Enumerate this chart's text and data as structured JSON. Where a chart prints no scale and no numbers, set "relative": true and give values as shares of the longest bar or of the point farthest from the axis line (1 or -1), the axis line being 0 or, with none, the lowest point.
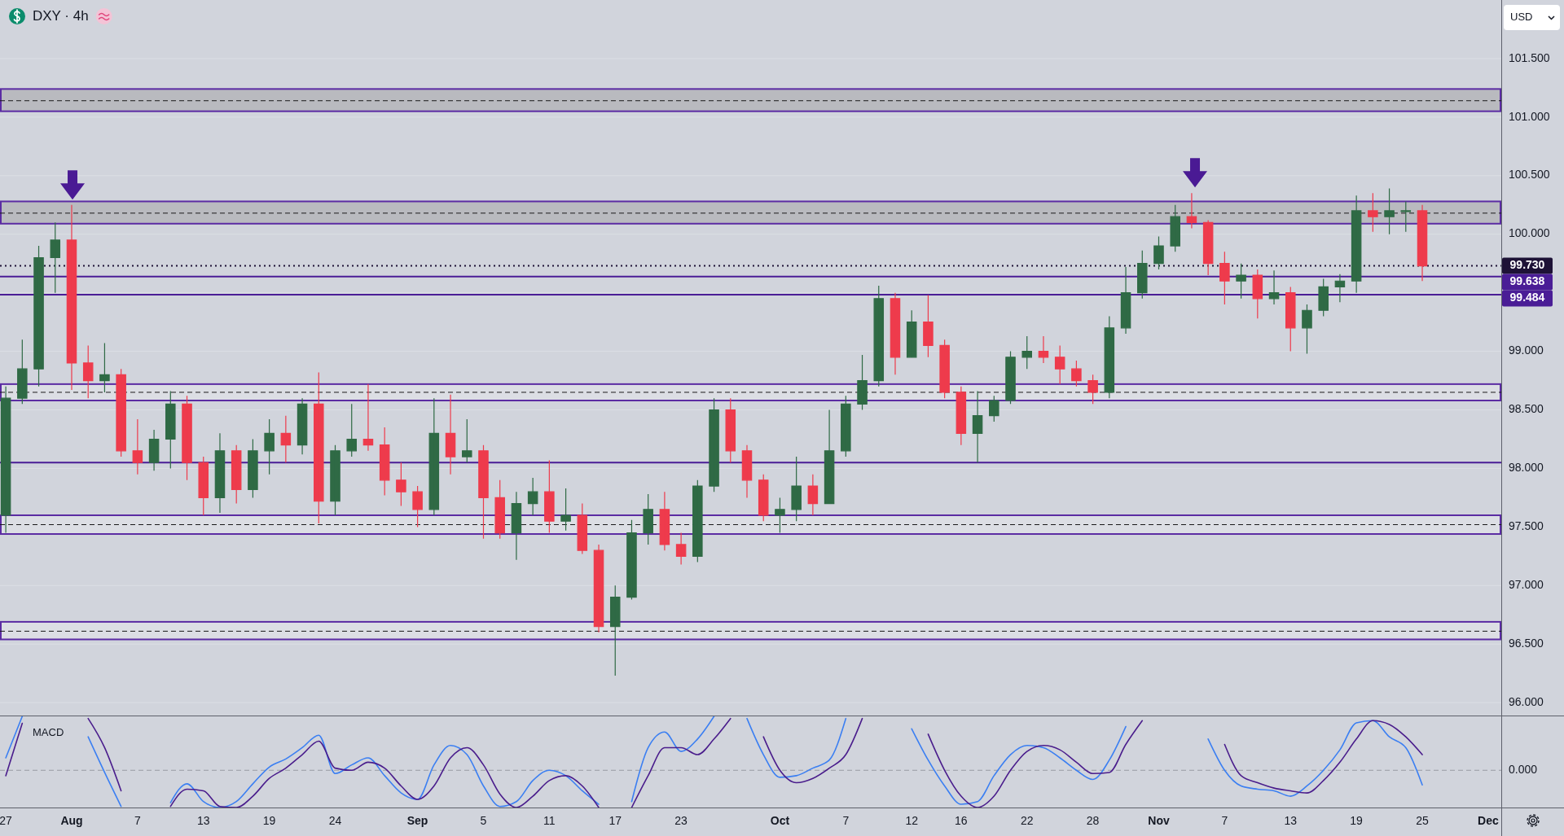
{
  "chart_data": [
    {
      "type": "candlestick",
      "title": "DXY · 4h",
      "annotations": [
        "USD"
      ],
      "categories": [
        null,
        null,
        null,
        null,
        null,
        null,
        null,
        null,
        null,
        null,
        null,
        null,
        null,
        null,
        null,
        null,
        null,
        null,
        null,
        null,
        null,
        null,
        null,
        null,
        null,
        null,
        null,
        null,
        null,
        null,
        null,
        null,
        null,
        null,
        null,
        null,
        null,
        null,
        null,
        null,
        null,
        null,
        null,
        null,
        null,
        null,
        null,
        null,
        null,
        null,
        null,
        null,
        null,
        null,
        null,
        null,
        null,
        null,
        null,
        null,
        null,
        null,
        null,
        null,
        null,
        null,
        null,
        null,
        null,
        null,
        null,
        null,
        null,
        null,
        null,
        null,
        null,
        null,
        null,
        null,
        null,
        null,
        null,
        null,
        null,
        null,
        null,
        null,
        null,
        null,
        null
      ],
      "ohlc": [
        [
          97.6,
          98.7,
          97.45,
          98.6
        ],
        [
          98.6,
          99.1,
          98.55,
          98.85
        ],
        [
          98.85,
          99.9,
          98.7,
          99.8
        ],
        [
          99.8,
          100.1,
          99.5,
          99.95
        ],
        [
          99.95,
          100.25,
          98.67,
          98.9
        ],
        [
          98.9,
          99.05,
          98.6,
          98.75
        ],
        [
          98.75,
          99.07,
          98.65,
          98.8
        ],
        [
          98.8,
          98.85,
          98.1,
          98.15
        ],
        [
          98.15,
          98.42,
          97.95,
          98.05
        ],
        [
          98.05,
          98.33,
          97.98,
          98.25
        ],
        [
          98.25,
          98.66,
          98.0,
          98.55
        ],
        [
          98.55,
          98.62,
          97.9,
          98.05
        ],
        [
          98.05,
          98.1,
          97.6,
          97.75
        ],
        [
          97.75,
          98.3,
          97.62,
          98.15
        ],
        [
          98.15,
          98.2,
          97.7,
          97.82
        ],
        [
          97.82,
          98.25,
          97.75,
          98.15
        ],
        [
          98.15,
          98.42,
          97.95,
          98.3
        ],
        [
          98.3,
          98.45,
          98.05,
          98.2
        ],
        [
          98.2,
          98.6,
          98.12,
          98.55
        ],
        [
          98.55,
          98.82,
          97.53,
          97.72
        ],
        [
          97.72,
          98.2,
          97.6,
          98.15
        ],
        [
          98.15,
          98.55,
          98.1,
          98.25
        ],
        [
          98.25,
          98.72,
          98.15,
          98.2
        ],
        [
          98.2,
          98.35,
          97.77,
          97.9
        ],
        [
          97.9,
          98.05,
          97.68,
          97.8
        ],
        [
          97.8,
          97.85,
          97.5,
          97.65
        ],
        [
          97.65,
          98.6,
          97.6,
          98.3
        ],
        [
          98.3,
          98.63,
          97.95,
          98.1
        ],
        [
          98.1,
          98.42,
          98.05,
          98.15
        ],
        [
          98.15,
          98.2,
          97.4,
          97.75
        ],
        [
          97.75,
          97.9,
          97.4,
          97.45
        ],
        [
          97.45,
          97.8,
          97.22,
          97.7
        ],
        [
          97.7,
          97.92,
          97.6,
          97.8
        ],
        [
          97.8,
          98.07,
          97.45,
          97.55
        ],
        [
          97.55,
          97.83,
          97.47,
          97.6
        ],
        [
          97.6,
          97.7,
          97.27,
          97.3
        ],
        [
          97.3,
          97.35,
          96.6,
          96.65
        ],
        [
          96.65,
          97.0,
          96.23,
          96.9
        ],
        [
          96.9,
          97.56,
          96.88,
          97.45
        ],
        [
          97.45,
          97.78,
          97.35,
          97.65
        ],
        [
          97.65,
          97.8,
          97.3,
          97.35
        ],
        [
          97.35,
          97.45,
          97.18,
          97.25
        ],
        [
          97.25,
          97.9,
          97.2,
          97.85
        ],
        [
          97.85,
          98.6,
          97.8,
          98.5
        ],
        [
          98.5,
          98.6,
          98.05,
          98.15
        ],
        [
          98.15,
          98.2,
          97.75,
          97.9
        ],
        [
          97.9,
          97.95,
          97.55,
          97.6
        ],
        [
          97.6,
          97.75,
          97.45,
          97.65
        ],
        [
          97.65,
          98.1,
          97.55,
          97.85
        ],
        [
          97.85,
          97.95,
          97.6,
          97.7
        ],
        [
          97.7,
          98.5,
          97.7,
          98.15
        ],
        [
          98.15,
          98.62,
          98.1,
          98.55
        ],
        [
          98.55,
          98.97,
          98.5,
          98.75
        ],
        [
          98.75,
          99.56,
          98.7,
          99.45
        ],
        [
          99.45,
          99.5,
          98.8,
          98.95
        ],
        [
          98.95,
          99.35,
          98.95,
          99.25
        ],
        [
          99.25,
          99.48,
          98.95,
          99.05
        ],
        [
          99.05,
          99.1,
          98.6,
          98.65
        ],
        [
          98.65,
          98.7,
          98.2,
          98.3
        ],
        [
          98.3,
          98.66,
          98.05,
          98.45
        ],
        [
          98.45,
          98.62,
          98.4,
          98.58
        ],
        [
          98.58,
          99.0,
          98.55,
          98.95
        ],
        [
          98.95,
          99.13,
          98.85,
          99.0
        ],
        [
          99.0,
          99.13,
          98.9,
          98.95
        ],
        [
          98.95,
          99.05,
          98.72,
          98.85
        ],
        [
          98.85,
          98.92,
          98.7,
          98.75
        ],
        [
          98.75,
          98.8,
          98.55,
          98.65
        ],
        [
          98.65,
          99.3,
          98.6,
          99.2
        ],
        [
          99.2,
          99.72,
          99.15,
          99.5
        ],
        [
          99.5,
          99.86,
          99.45,
          99.75
        ],
        [
          99.75,
          99.98,
          99.7,
          99.9
        ],
        [
          99.9,
          100.25,
          99.85,
          100.15
        ],
        [
          100.15,
          100.35,
          100.05,
          100.1
        ],
        [
          100.1,
          100.12,
          99.65,
          99.75
        ],
        [
          99.75,
          99.85,
          99.4,
          99.6
        ],
        [
          99.6,
          99.75,
          99.45,
          99.65
        ],
        [
          99.65,
          99.7,
          99.28,
          99.45
        ],
        [
          99.45,
          99.69,
          99.4,
          99.5
        ],
        [
          99.5,
          99.55,
          99.0,
          99.2
        ],
        [
          99.2,
          99.4,
          98.98,
          99.35
        ],
        [
          99.35,
          99.62,
          99.3,
          99.55
        ],
        [
          99.55,
          99.66,
          99.42,
          99.6
        ],
        [
          99.6,
          100.33,
          99.5,
          100.2
        ],
        [
          100.2,
          100.35,
          100.02,
          100.15
        ],
        [
          100.15,
          100.39,
          100.0,
          100.2
        ],
        [
          100.2,
          100.28,
          100.02,
          100.2
        ],
        [
          100.2,
          100.25,
          99.6,
          99.73
        ],
        null,
        null,
        null,
        null
      ],
      "ylim": [
        95.89,
        102.0
      ],
      "yticks": [
        {
          "value": 96,
          "label": "96.000"
        },
        {
          "value": 96.5,
          "label": "96.500"
        },
        {
          "value": 97,
          "label": "97.000"
        },
        {
          "value": 97.5,
          "label": "97.500"
        },
        {
          "value": 98,
          "label": "98.000"
        },
        {
          "value": 98.5,
          "label": "98.500"
        },
        {
          "value": 99,
          "label": "99.000"
        },
        {
          "value": 99.5,
          "label": null
        },
        {
          "value": 100,
          "label": "100.000"
        },
        {
          "value": 100.5,
          "label": "100.500"
        },
        {
          "value": 101,
          "label": "101.000"
        },
        {
          "value": 101.5,
          "label": "101.500"
        }
      ],
      "grid": "y",
      "tick_labels": "y",
      "bands": [
        {
          "axis": "y",
          "from": 101.05,
          "to": 101.24,
          "color": "#b9babf"
        },
        {
          "axis": "y",
          "from": 100.09,
          "to": 100.28,
          "color": "#b9babf"
        },
        {
          "axis": "y",
          "from": 98.58,
          "to": 98.72,
          "color": "#dcdee4"
        },
        {
          "axis": "y",
          "from": 97.44,
          "to": 97.6,
          "color": "#dcdee4"
        },
        {
          "axis": "y",
          "from": 96.54,
          "to": 96.69,
          "color": "#dcdee4"
        }
      ],
      "ref_lines": [
        {
          "axis": "y",
          "value": 99.73,
          "label": "99.730",
          "color": "#1e1236",
          "line_style": "dotted"
        },
        {
          "axis": "y",
          "value": 99.638,
          "label": "99.638",
          "color": "#4a1d96",
          "line_style": "solid"
        },
        {
          "axis": "y",
          "value": 99.484,
          "label": "99.484",
          "color": "#4a1d96",
          "line_style": "solid"
        },
        {
          "axis": "y",
          "value": 98.05,
          "color": "#4a1d96",
          "line_style": "solid"
        },
        {
          "axis": "y",
          "value": 101.14,
          "color": "#1a1a1a",
          "line_style": "dashed"
        },
        {
          "axis": "y",
          "value": 100.18,
          "color": "#1a1a1a",
          "line_style": "dashed"
        },
        {
          "axis": "y",
          "value": 98.65,
          "color": "#1a1a1a",
          "line_style": "dashed"
        },
        {
          "axis": "y",
          "value": 97.52,
          "color": "#1a1a1a",
          "line_style": "dashed"
        },
        {
          "axis": "y",
          "value": 96.61,
          "color": "#1a1a1a",
          "line_style": "dashed"
        }
      ]
    },
    {
      "type": "line",
      "title": "MACD",
      "relative": true,
      "tick_labels": "x",
      "categories": [
        "27",
        null,
        null,
        null,
        "Aug",
        null,
        null,
        null,
        "7",
        null,
        null,
        null,
        "13",
        null,
        null,
        null,
        "19",
        null,
        null,
        null,
        "24",
        null,
        null,
        null,
        null,
        "Sep",
        null,
        null,
        null,
        "5",
        null,
        null,
        null,
        "11",
        null,
        null,
        null,
        "17",
        null,
        null,
        null,
        "23",
        null,
        null,
        null,
        null,
        null,
        "Oct",
        null,
        null,
        null,
        "7",
        null,
        null,
        null,
        "12",
        null,
        null,
        "16",
        null,
        null,
        null,
        "22",
        null,
        null,
        null,
        "28",
        null,
        null,
        null,
        "Nov",
        null,
        null,
        null,
        "7",
        null,
        null,
        null,
        "13",
        null,
        null,
        null,
        "19",
        null,
        null,
        null,
        "25",
        null,
        null,
        null,
        "Dec"
      ],
      "series": [
        {
          "color": "#3b7ff2",
          "values": [
            0.23,
            1,
            null,
            null,
            null,
            0.62,
            -0.04,
            -0.67,
            null,
            null,
            -0.6,
            -0.25,
            -0.58,
            -0.69,
            -0.58,
            -0.25,
            0.06,
            0.21,
            0.42,
            0.65,
            -0.06,
            0.1,
            0.23,
            -0.1,
            -0.42,
            -0.54,
            0.1,
            0.46,
            0.29,
            -0.29,
            -0.67,
            -0.58,
            -0.19,
            0,
            -0.1,
            -0.38,
            -0.63,
            null,
            -0.58,
            0.42,
            0.71,
            0.35,
            0.58,
            1,
            null,
            0.96,
            0.29,
            -0.13,
            -0.1,
            0.04,
            0.19,
            0.96,
            null,
            null,
            null,
            0.77,
            0.19,
            -0.29,
            -0.63,
            -0.58,
            -0.1,
            0.29,
            0.46,
            0.42,
            0.23,
            0,
            -0.17,
            0.19,
            0.81,
            null,
            null,
            null,
            null,
            0.58,
            0,
            -0.29,
            -0.35,
            -0.38,
            -0.48,
            -0.29,
            0,
            0.38,
            0.88,
            0.92,
            0.62,
            0.42,
            -0.27,
            null,
            null,
            null,
            null
          ]
        },
        {
          "color": "#4a1d8c",
          "values": [
            -0.1,
            0.87,
            null,
            null,
            null,
            0.96,
            0.42,
            -0.38,
            null,
            null,
            -0.67,
            -0.35,
            -0.38,
            -0.67,
            -0.69,
            -0.48,
            -0.15,
            0.04,
            0.29,
            0.54,
            0.04,
            0,
            0.15,
            0.04,
            -0.29,
            -0.54,
            -0.29,
            0.23,
            0.42,
            0.1,
            -0.44,
            -0.69,
            -0.48,
            -0.19,
            -0.1,
            -0.29,
            -0.69,
            null,
            -0.69,
            -0.1,
            0.42,
            0.42,
            0.29,
            0.58,
            0.96,
            null,
            0.62,
            0,
            -0.23,
            -0.15,
            0.04,
            0.29,
            0.96,
            null,
            null,
            null,
            0.67,
            0,
            -0.48,
            -0.69,
            -0.48,
            0,
            0.35,
            0.46,
            0.38,
            0.15,
            -0.06,
            -0.04,
            0.48,
            0.92,
            null,
            null,
            null,
            null,
            0.48,
            -0.1,
            -0.23,
            -0.33,
            -0.38,
            -0.42,
            -0.19,
            0.15,
            0.58,
            0.92,
            0.85,
            0.62,
            0.29,
            null,
            null,
            null,
            null
          ]
        }
      ],
      "ref_lines": [
        {
          "axis": "y",
          "value": 0,
          "label": "0.000",
          "color": "#9a9ca5",
          "line_style": "dashed"
        }
      ]
    }
  ]
}
